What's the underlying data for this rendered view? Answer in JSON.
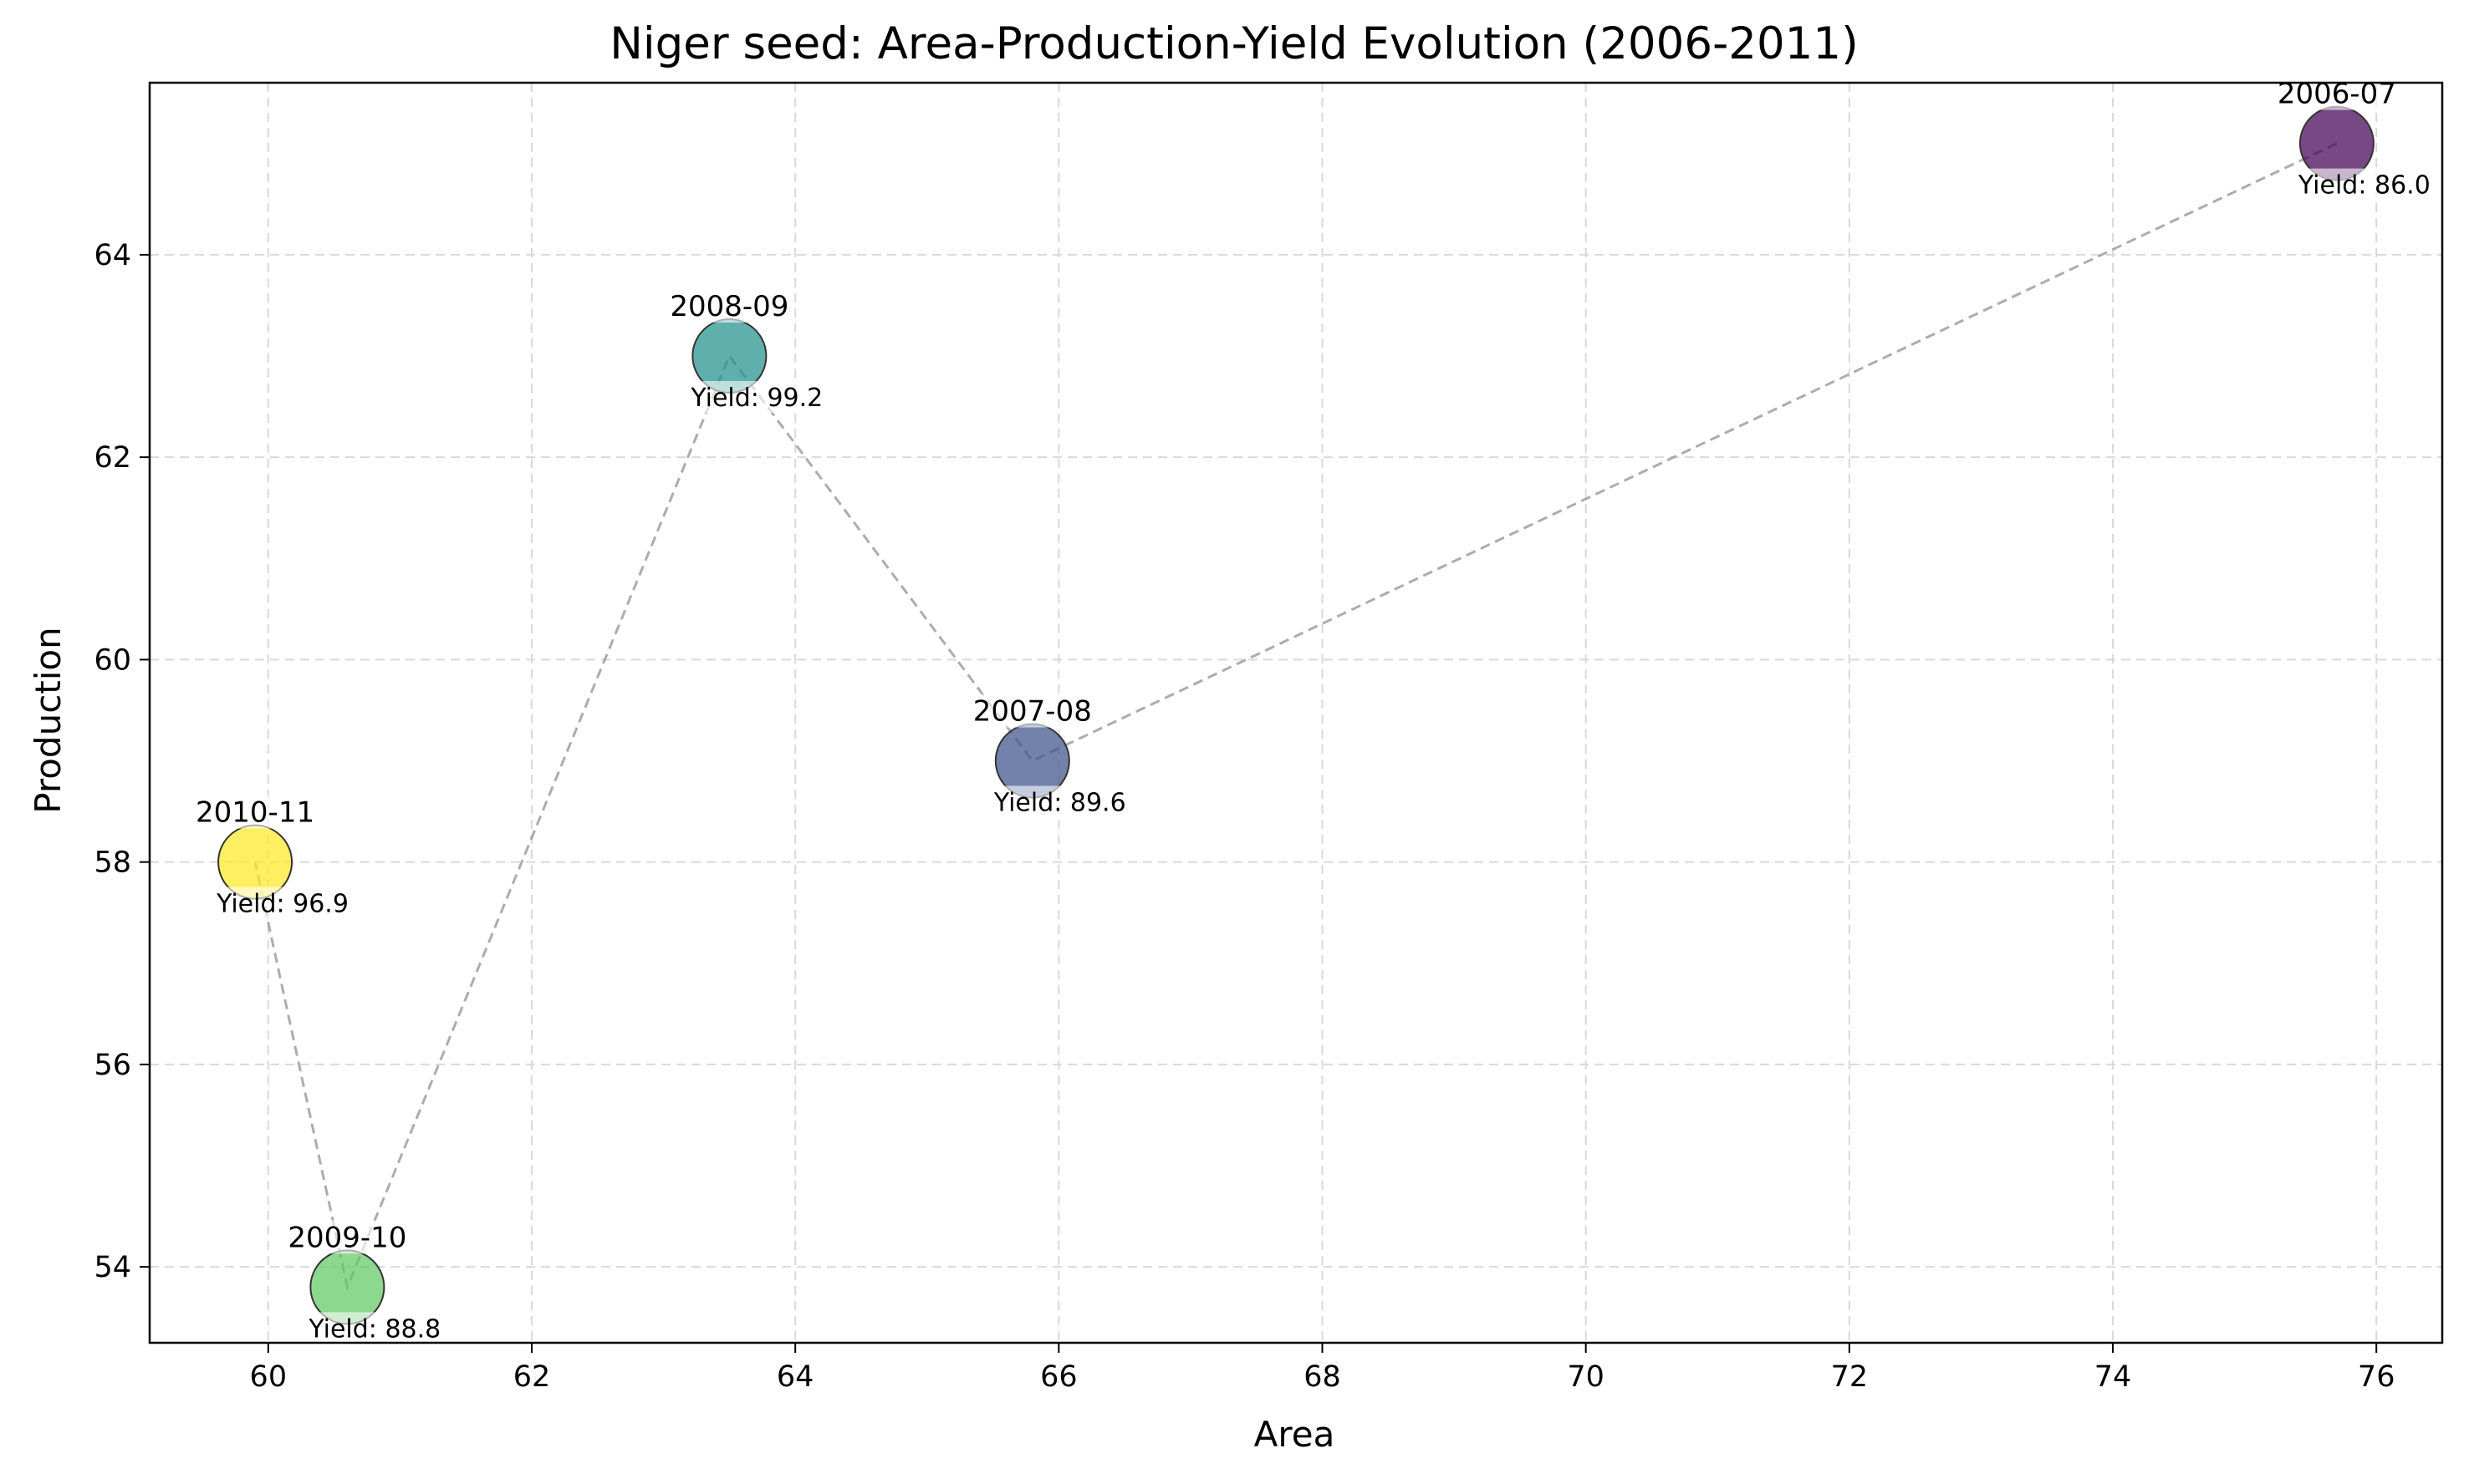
{
  "chart_data": {
    "type": "scatter",
    "title": "Niger seed: Area-Production-Yield Evolution (2006-2011)",
    "xlabel": "Area",
    "ylabel": "Production",
    "xlim": [
      59.1,
      76.5
    ],
    "ylim": [
      53.25,
      65.7
    ],
    "xticks": [
      60,
      62,
      64,
      66,
      68,
      70,
      72,
      74,
      76
    ],
    "yticks": [
      54,
      56,
      58,
      60,
      62,
      64
    ],
    "grid": true,
    "connect_points": true,
    "points": [
      {
        "label": "2006-07",
        "x": 75.7,
        "y": 65.1,
        "yield_label": "Yield: 86.0",
        "color": "#440154"
      },
      {
        "label": "2007-08",
        "x": 65.8,
        "y": 59.0,
        "yield_label": "Yield: 89.6",
        "color": "#3b528b"
      },
      {
        "label": "2008-09",
        "x": 63.5,
        "y": 63.0,
        "yield_label": "Yield: 99.2",
        "color": "#21918c"
      },
      {
        "label": "2009-10",
        "x": 60.6,
        "y": 53.8,
        "yield_label": "Yield: 88.8",
        "color": "#5ec962"
      },
      {
        "label": "2010-11",
        "x": 59.9,
        "y": 58.0,
        "yield_label": "Yield: 96.9",
        "color": "#fde725"
      }
    ]
  }
}
